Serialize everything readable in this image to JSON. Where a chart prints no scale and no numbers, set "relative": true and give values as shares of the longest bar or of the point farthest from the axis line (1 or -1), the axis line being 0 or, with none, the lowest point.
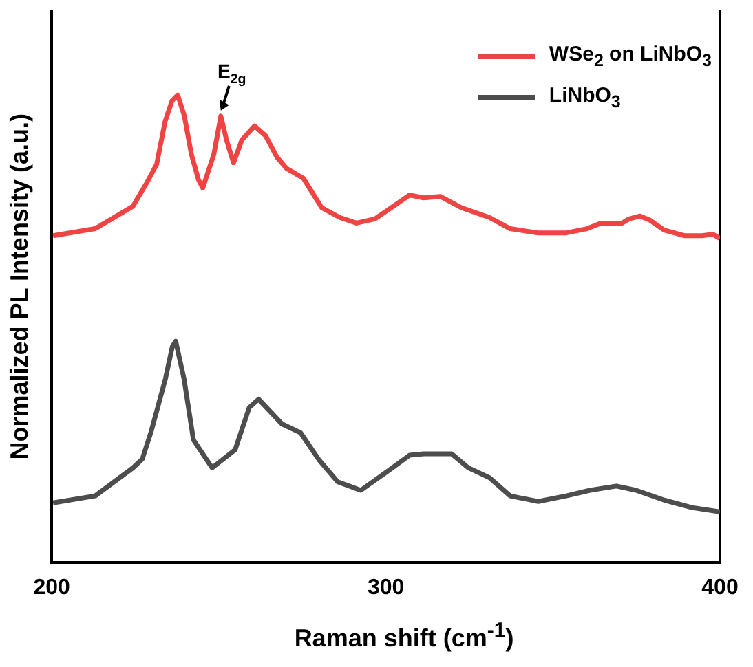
{
  "chart_data": {
    "type": "line",
    "xlabel": "Raman shift (cm$^{-1}$)",
    "ylabel": "Normalized PL Intensity (a.u.)",
    "relative": true,
    "xlim": [
      200,
      400
    ],
    "xticks": [
      200,
      300,
      400
    ],
    "legend": "top right",
    "grid": false,
    "marker": "none",
    "line_style": "solid",
    "annotations": [
      {
        "text": "E$_{2g}$",
        "x": 250.6,
        "y": 0.955
      }
    ],
    "series": [
      {
        "name": "WSe$_{2}$ on LiNbO$_{3}$",
        "color": "#ee4444",
        "x": [
          200.4,
          213.0,
          224.3,
          228.5,
          231.4,
          233.9,
          236.0,
          237.7,
          239.7,
          241.8,
          243.9,
          245.2,
          248.5,
          250.6,
          252.3,
          254.4,
          256.9,
          260.7,
          264.0,
          267.4,
          270.3,
          275.3,
          280.8,
          286.2,
          291.2,
          296.7,
          300.4,
          307.1,
          311.3,
          316.3,
          322.6,
          331.0,
          337.2,
          345.6,
          354.0,
          360.2,
          364.4,
          370.7,
          372.8,
          376.1,
          379.1,
          383.3,
          389.5,
          394.6,
          397.9,
          400
        ],
        "values": [
          0.699,
          0.714,
          0.762,
          0.813,
          0.852,
          0.943,
          0.988,
          1,
          0.955,
          0.873,
          0.819,
          0.801,
          0.873,
          0.955,
          0.904,
          0.855,
          0.904,
          0.934,
          0.913,
          0.867,
          0.843,
          0.822,
          0.759,
          0.738,
          0.726,
          0.735,
          0.753,
          0.786,
          0.78,
          0.783,
          0.759,
          0.738,
          0.714,
          0.705,
          0.705,
          0.714,
          0.726,
          0.726,
          0.735,
          0.741,
          0.732,
          0.711,
          0.699,
          0.699,
          0.702,
          0.693
        ]
      },
      {
        "name": "LiNbO$_{3}$",
        "color": "#4d4d4d",
        "x": [
          200.4,
          213.0,
          224.3,
          227.1,
          229.8,
          234.0,
          236.1,
          237.1,
          239.6,
          242.4,
          248.0,
          254.9,
          259.1,
          261.9,
          268.9,
          274.5,
          279.9,
          285.6,
          292.5,
          300.8,
          307.1,
          311.3,
          319.7,
          324.7,
          331.0,
          337.2,
          345.6,
          354.0,
          361.1,
          369.0,
          374.9,
          383.3,
          391.6,
          400
        ],
        "values": [
          0.127,
          0.142,
          0.202,
          0.221,
          0.281,
          0.392,
          0.462,
          0.473,
          0.392,
          0.262,
          0.202,
          0.241,
          0.331,
          0.349,
          0.296,
          0.277,
          0.22,
          0.172,
          0.154,
          0.196,
          0.229,
          0.232,
          0.232,
          0.202,
          0.181,
          0.142,
          0.13,
          0.142,
          0.154,
          0.163,
          0.154,
          0.133,
          0.117,
          0.108
        ]
      }
    ]
  }
}
